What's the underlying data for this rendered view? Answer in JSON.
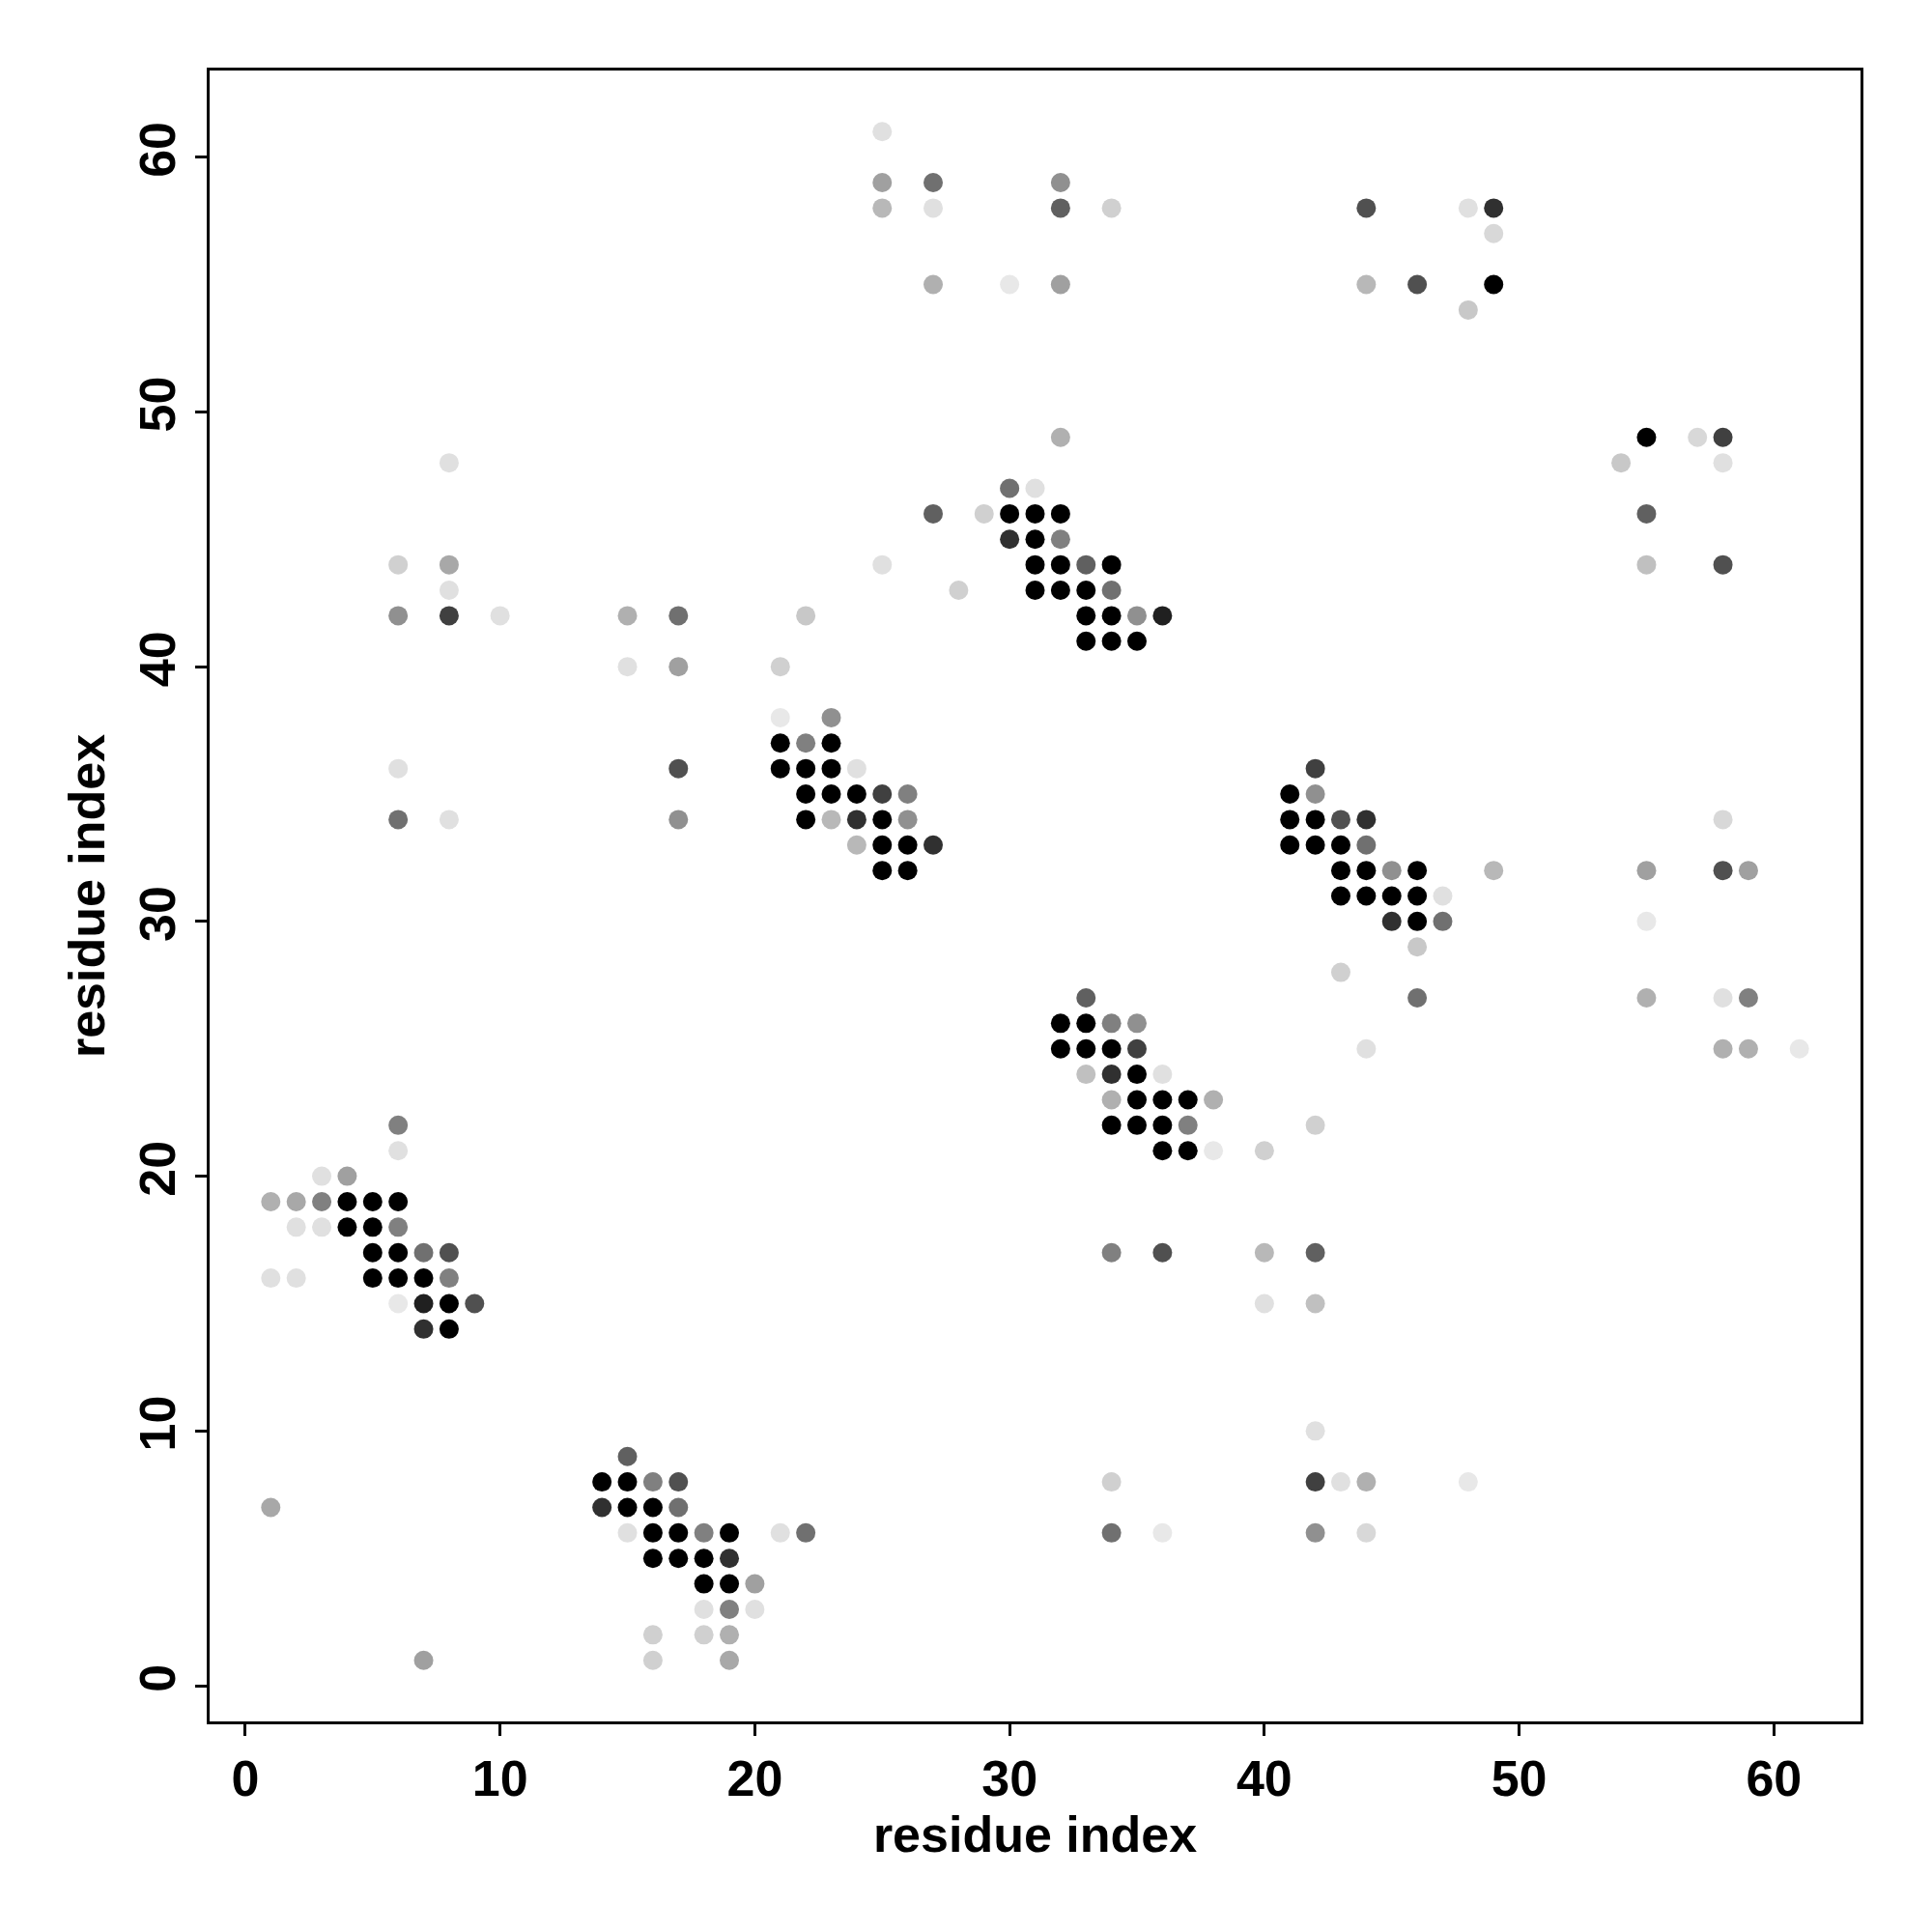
{
  "chart_data": {
    "type": "scatter",
    "xlabel": "residue index",
    "ylabel": "residue index",
    "marker": "circle",
    "xlim": [
      -1.4,
      63.4
    ],
    "ylim": [
      -1.4,
      63.4
    ],
    "xticks": [
      0,
      10,
      20,
      30,
      40,
      50,
      60
    ],
    "yticks": [
      0,
      10,
      20,
      30,
      40,
      50,
      60
    ],
    "series": [
      {
        "x": [
          25
        ],
        "values": [
          61
        ],
        "colors": [
          "#e0e0e0"
        ]
      },
      {
        "x": [
          25,
          27,
          32
        ],
        "values": [
          59,
          59,
          59
        ],
        "colors": [
          "#a0a0a0",
          "#707070",
          "#909090"
        ]
      },
      {
        "x": [
          25,
          27,
          32,
          34,
          44,
          48,
          49
        ],
        "values": [
          58,
          58,
          58,
          58,
          58,
          58,
          58
        ],
        "colors": [
          "#b8b8b8",
          "#e0e0e0",
          "#606060",
          "#d0d0d0",
          "#505050",
          "#e0e0e0",
          "#303030"
        ]
      },
      {
        "x": [
          49
        ],
        "values": [
          57
        ],
        "colors": [
          "#d8d8d8"
        ]
      },
      {
        "x": [
          27,
          30,
          32,
          44,
          46,
          49
        ],
        "values": [
          55,
          55,
          55,
          55,
          55,
          55
        ],
        "colors": [
          "#b0b0b0",
          "#e8e8e8",
          "#a0a0a0",
          "#b8b8b8",
          "#505050",
          "#000000"
        ]
      },
      {
        "x": [
          48
        ],
        "values": [
          54
        ],
        "colors": [
          "#c8c8c8"
        ]
      },
      {
        "x": [
          32,
          55,
          57,
          58
        ],
        "values": [
          49,
          49,
          49,
          49
        ],
        "colors": [
          "#b0b0b0",
          "#000000",
          "#d8d8d8",
          "#404040"
        ]
      },
      {
        "x": [
          8,
          54,
          58
        ],
        "values": [
          48,
          48,
          48
        ],
        "colors": [
          "#e0e0e0",
          "#c8c8c8",
          "#e0e0e0"
        ]
      },
      {
        "x": [
          30,
          31
        ],
        "values": [
          47,
          47
        ],
        "colors": [
          "#707070",
          "#e0e0e0"
        ]
      },
      {
        "x": [
          27,
          29,
          30,
          31,
          32,
          55
        ],
        "values": [
          46,
          46,
          46,
          46,
          46,
          46
        ],
        "colors": [
          "#606060",
          "#d0d0d0",
          "#000000",
          "#000000",
          "#000000",
          "#606060"
        ]
      },
      {
        "x": [
          30,
          31,
          32
        ],
        "values": [
          45,
          45,
          45
        ],
        "colors": [
          "#303030",
          "#000000",
          "#808080"
        ]
      },
      {
        "x": [
          6,
          8,
          25,
          31,
          32,
          33,
          34,
          55,
          58
        ],
        "values": [
          44,
          44,
          44,
          44,
          44,
          44,
          44,
          44,
          44
        ],
        "colors": [
          "#d0d0d0",
          "#a8a8a8",
          "#e0e0e0",
          "#000000",
          "#000000",
          "#606060",
          "#000000",
          "#c0c0c0",
          "#505050"
        ]
      },
      {
        "x": [
          8,
          28,
          31,
          32,
          33,
          34
        ],
        "values": [
          43,
          43,
          43,
          43,
          43,
          43
        ],
        "colors": [
          "#e0e0e0",
          "#d0d0d0",
          "#000000",
          "#000000",
          "#000000",
          "#707070"
        ]
      },
      {
        "x": [
          6,
          8,
          10,
          15,
          17,
          22,
          33,
          34,
          35,
          36
        ],
        "values": [
          42,
          42,
          42,
          42,
          42,
          42,
          42,
          42,
          42,
          42
        ],
        "colors": [
          "#909090",
          "#404040",
          "#e0e0e0",
          "#b0b0b0",
          "#707070",
          "#c8c8c8",
          "#000000",
          "#000000",
          "#909090",
          "#202020"
        ]
      },
      {
        "x": [
          33,
          34,
          35
        ],
        "values": [
          41,
          41,
          41
        ],
        "colors": [
          "#000000",
          "#000000",
          "#000000"
        ]
      },
      {
        "x": [
          15,
          17,
          21
        ],
        "values": [
          40,
          40,
          40
        ],
        "colors": [
          "#e0e0e0",
          "#a0a0a0",
          "#d0d0d0"
        ]
      },
      {
        "x": [
          21,
          23
        ],
        "values": [
          38,
          38
        ],
        "colors": [
          "#e8e8e8",
          "#909090"
        ]
      },
      {
        "x": [
          21,
          22,
          23
        ],
        "values": [
          37,
          37,
          37
        ],
        "colors": [
          "#000000",
          "#808080",
          "#000000"
        ]
      },
      {
        "x": [
          6,
          17,
          21,
          22,
          23,
          24,
          42
        ],
        "values": [
          36,
          36,
          36,
          36,
          36,
          36,
          36
        ],
        "colors": [
          "#e0e0e0",
          "#505050",
          "#000000",
          "#000000",
          "#000000",
          "#e0e0e0",
          "#404040"
        ]
      },
      {
        "x": [
          22,
          23,
          24,
          25,
          26,
          41,
          42
        ],
        "values": [
          35,
          35,
          35,
          35,
          35,
          35,
          35
        ],
        "colors": [
          "#000000",
          "#000000",
          "#000000",
          "#404040",
          "#808080",
          "#000000",
          "#909090"
        ]
      },
      {
        "x": [
          6,
          8,
          17,
          22,
          23,
          24,
          25,
          26,
          41,
          42,
          43,
          44,
          58
        ],
        "values": [
          34,
          34,
          34,
          34,
          34,
          34,
          34,
          34,
          34,
          34,
          34,
          34,
          34
        ],
        "colors": [
          "#707070",
          "#e0e0e0",
          "#909090",
          "#000000",
          "#b8b8b8",
          "#303030",
          "#000000",
          "#909090",
          "#000000",
          "#000000",
          "#505050",
          "#303030",
          "#d8d8d8"
        ]
      },
      {
        "x": [
          24,
          25,
          26,
          27,
          41,
          42,
          43,
          44
        ],
        "values": [
          33,
          33,
          33,
          33,
          33,
          33,
          33,
          33
        ],
        "colors": [
          "#b8b8b8",
          "#000000",
          "#000000",
          "#303030",
          "#000000",
          "#000000",
          "#000000",
          "#707070"
        ]
      },
      {
        "x": [
          25,
          26,
          43,
          44,
          45,
          46,
          49,
          55,
          58,
          59
        ],
        "values": [
          32,
          32,
          32,
          32,
          32,
          32,
          32,
          32,
          32,
          32
        ],
        "colors": [
          "#000000",
          "#000000",
          "#000000",
          "#000000",
          "#909090",
          "#000000",
          "#b8b8b8",
          "#a0a0a0",
          "#505050",
          "#a0a0a0"
        ]
      },
      {
        "x": [
          43,
          44,
          45,
          46,
          47
        ],
        "values": [
          31,
          31,
          31,
          31,
          31
        ],
        "colors": [
          "#000000",
          "#000000",
          "#000000",
          "#000000",
          "#e0e0e0"
        ]
      },
      {
        "x": [
          45,
          46,
          47,
          55
        ],
        "values": [
          30,
          30,
          30,
          30
        ],
        "colors": [
          "#303030",
          "#000000",
          "#707070",
          "#e8e8e8"
        ]
      },
      {
        "x": [
          46
        ],
        "values": [
          29
        ],
        "colors": [
          "#c8c8c8"
        ]
      },
      {
        "x": [
          43
        ],
        "values": [
          28
        ],
        "colors": [
          "#d0d0d0"
        ]
      },
      {
        "x": [
          33,
          46,
          55,
          58,
          59
        ],
        "values": [
          27,
          27,
          27,
          27,
          27
        ],
        "colors": [
          "#606060",
          "#707070",
          "#b0b0b0",
          "#e0e0e0",
          "#808080"
        ]
      },
      {
        "x": [
          32,
          33,
          34,
          35
        ],
        "values": [
          26,
          26,
          26,
          26
        ],
        "colors": [
          "#000000",
          "#000000",
          "#808080",
          "#909090"
        ]
      },
      {
        "x": [
          32,
          33,
          34,
          35,
          44,
          58,
          59,
          61
        ],
        "values": [
          25,
          25,
          25,
          25,
          25,
          25,
          25,
          25
        ],
        "colors": [
          "#000000",
          "#000000",
          "#000000",
          "#404040",
          "#e0e0e0",
          "#b0b0b0",
          "#b0b0b0",
          "#e8e8e8"
        ]
      },
      {
        "x": [
          33,
          34,
          35,
          36
        ],
        "values": [
          24,
          24,
          24,
          24
        ],
        "colors": [
          "#c0c0c0",
          "#303030",
          "#000000",
          "#e0e0e0"
        ]
      },
      {
        "x": [
          34,
          35,
          36,
          37,
          38
        ],
        "values": [
          23,
          23,
          23,
          23,
          23
        ],
        "colors": [
          "#b0b0b0",
          "#000000",
          "#000000",
          "#000000",
          "#b0b0b0"
        ]
      },
      {
        "x": [
          6,
          34,
          35,
          36,
          37,
          42
        ],
        "values": [
          22,
          22,
          22,
          22,
          22,
          22
        ],
        "colors": [
          "#808080",
          "#000000",
          "#000000",
          "#000000",
          "#808080",
          "#d0d0d0"
        ]
      },
      {
        "x": [
          6,
          36,
          37,
          38,
          40
        ],
        "values": [
          21,
          21,
          21,
          21,
          21
        ],
        "colors": [
          "#e0e0e0",
          "#000000",
          "#000000",
          "#e8e8e8",
          "#d0d0d0"
        ]
      },
      {
        "x": [
          3,
          4
        ],
        "values": [
          20,
          20
        ],
        "colors": [
          "#e0e0e0",
          "#a0a0a0"
        ]
      },
      {
        "x": [
          1,
          2,
          3,
          4,
          5,
          6
        ],
        "values": [
          19,
          19,
          19,
          19,
          19,
          19
        ],
        "colors": [
          "#b0b0b0",
          "#a8a8a8",
          "#808080",
          "#000000",
          "#000000",
          "#000000"
        ]
      },
      {
        "x": [
          2,
          3,
          4,
          5,
          6
        ],
        "values": [
          18,
          18,
          18,
          18,
          18
        ],
        "colors": [
          "#e0e0e0",
          "#e0e0e0",
          "#000000",
          "#000000",
          "#808080"
        ]
      },
      {
        "x": [
          5,
          6,
          7,
          8,
          34,
          36,
          40,
          42
        ],
        "values": [
          17,
          17,
          17,
          17,
          17,
          17,
          17,
          17
        ],
        "colors": [
          "#000000",
          "#000000",
          "#707070",
          "#505050",
          "#808080",
          "#505050",
          "#b8b8b8",
          "#606060"
        ]
      },
      {
        "x": [
          1,
          2,
          5,
          6,
          7,
          8
        ],
        "values": [
          16,
          16,
          16,
          16,
          16,
          16
        ],
        "colors": [
          "#e0e0e0",
          "#e0e0e0",
          "#000000",
          "#000000",
          "#000000",
          "#808080"
        ]
      },
      {
        "x": [
          6,
          7,
          8,
          9,
          40,
          42
        ],
        "values": [
          15,
          15,
          15,
          15,
          15,
          15
        ],
        "colors": [
          "#e8e8e8",
          "#202020",
          "#000000",
          "#505050",
          "#e0e0e0",
          "#c0c0c0"
        ]
      },
      {
        "x": [
          7,
          8
        ],
        "values": [
          14,
          14
        ],
        "colors": [
          "#303030",
          "#000000"
        ]
      },
      {
        "x": [
          42
        ],
        "values": [
          10
        ],
        "colors": [
          "#e0e0e0"
        ]
      },
      {
        "x": [
          15
        ],
        "values": [
          9
        ],
        "colors": [
          "#606060"
        ]
      },
      {
        "x": [
          14,
          15,
          16,
          17,
          34,
          42,
          43,
          44,
          48
        ],
        "values": [
          8,
          8,
          8,
          8,
          8,
          8,
          8,
          8,
          8
        ],
        "colors": [
          "#000000",
          "#000000",
          "#808080",
          "#505050",
          "#d0d0d0",
          "#404040",
          "#e0e0e0",
          "#b0b0b0",
          "#e8e8e8"
        ]
      },
      {
        "x": [
          1,
          14,
          15,
          16,
          17
        ],
        "values": [
          7,
          7,
          7,
          7,
          7
        ],
        "colors": [
          "#a8a8a8",
          "#303030",
          "#000000",
          "#000000",
          "#707070"
        ]
      },
      {
        "x": [
          15,
          16,
          17,
          18,
          19,
          21,
          22,
          34,
          36,
          42,
          44
        ],
        "values": [
          6,
          6,
          6,
          6,
          6,
          6,
          6,
          6,
          6,
          6,
          6
        ],
        "colors": [
          "#e0e0e0",
          "#000000",
          "#000000",
          "#808080",
          "#000000",
          "#e0e0e0",
          "#707070",
          "#707070",
          "#e8e8e8",
          "#909090",
          "#d8d8d8"
        ]
      },
      {
        "x": [
          16,
          17,
          18,
          19
        ],
        "values": [
          5,
          5,
          5,
          5
        ],
        "colors": [
          "#000000",
          "#000000",
          "#000000",
          "#303030"
        ]
      },
      {
        "x": [
          18,
          19,
          20
        ],
        "values": [
          4,
          4,
          4
        ],
        "colors": [
          "#000000",
          "#000000",
          "#a0a0a0"
        ]
      },
      {
        "x": [
          18,
          19,
          20
        ],
        "values": [
          3,
          3,
          3
        ],
        "colors": [
          "#e0e0e0",
          "#808080",
          "#e0e0e0"
        ]
      },
      {
        "x": [
          16,
          18,
          19
        ],
        "values": [
          2,
          2,
          2
        ],
        "colors": [
          "#d0d0d0",
          "#d0d0d0",
          "#b0b0b0"
        ]
      },
      {
        "x": [
          7,
          16,
          19
        ],
        "values": [
          1,
          1,
          1
        ],
        "colors": [
          "#a0a0a0",
          "#d0d0d0",
          "#a8a8a8"
        ]
      }
    ]
  }
}
